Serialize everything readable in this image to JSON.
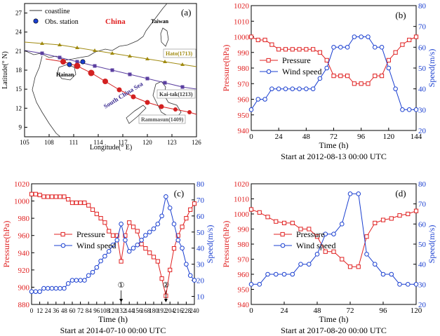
{
  "panel_a": {
    "label": "(a)",
    "legend": {
      "coastline": "coastline",
      "station": "Obs. station"
    },
    "place_labels": {
      "china": "China",
      "taiwan": "Taiwan",
      "hainan": "Hainan",
      "sea": "South China Sea"
    },
    "typhoon_labels": {
      "hato": "Hato(1713)",
      "kaitak": "Kai-tak(1213)",
      "rammasun": "Rammasun(1409)"
    },
    "xlabel": "Longitude(° E)",
    "ylabel": "Latitude(° N)",
    "xticks": [
      "105",
      "108",
      "111",
      "114",
      "117",
      "120",
      "123",
      "126"
    ],
    "yticks": [
      "9",
      "12",
      "15",
      "18",
      "21",
      "24",
      "27"
    ],
    "colors": {
      "hato": "#a08a10",
      "kaitak": "#c0392b",
      "rammasun": "#d32020",
      "track_purple": "#5b3fa0",
      "china": "#e02020"
    }
  },
  "chart_data": [
    {
      "type": "line",
      "panel": "(b)",
      "caption": "Start at 2012-08-13 00:00 UTC",
      "xlabel": "Time (h)",
      "ylabel_left": "Pressure(hPa)",
      "ylabel_right": "Speed(m/s)",
      "xlim": [
        0,
        144
      ],
      "ylim_left": [
        940,
        1020
      ],
      "ylim_right": [
        20,
        80
      ],
      "xticks": [
        "0",
        "24",
        "48",
        "72",
        "96",
        "120",
        "144"
      ],
      "yticks_left": [
        "940",
        "950",
        "960",
        "970",
        "980",
        "990",
        "1000",
        "1010",
        "1020"
      ],
      "yticks_right": [
        "20",
        "30",
        "40",
        "50",
        "60",
        "70",
        "80"
      ],
      "legend": [
        "Pressure",
        "Wind speed"
      ],
      "series": [
        {
          "name": "Pressure",
          "axis": "left",
          "color": "#e02020",
          "marker": "square",
          "x": [
            0,
            6,
            12,
            18,
            24,
            30,
            36,
            42,
            48,
            54,
            60,
            66,
            72,
            78,
            84,
            90,
            96,
            102,
            108,
            114,
            120,
            126,
            132,
            138,
            144
          ],
          "y": [
            1000,
            998,
            998,
            995,
            992,
            992,
            992,
            992,
            992,
            992,
            990,
            985,
            975,
            975,
            975,
            970,
            970,
            970,
            975,
            975,
            985,
            990,
            995,
            998,
            1000
          ]
        },
        {
          "name": "Wind speed",
          "axis": "right",
          "color": "#1a3fd0",
          "marker": "circle",
          "x": [
            0,
            6,
            12,
            18,
            24,
            30,
            36,
            42,
            48,
            54,
            60,
            66,
            72,
            78,
            84,
            90,
            96,
            102,
            108,
            114,
            120,
            126,
            132,
            138,
            144
          ],
          "y": [
            30,
            35,
            35,
            40,
            40,
            40,
            40,
            40,
            40,
            40,
            45,
            50,
            60,
            60,
            60,
            65,
            65,
            65,
            60,
            60,
            50,
            40,
            30,
            30,
            30
          ]
        }
      ]
    },
    {
      "type": "line",
      "panel": "(c)",
      "caption": "Start at 2014-07-10 00:00 UTC",
      "xlabel": "Time (h)",
      "ylabel_left": "Pressure(hPa)",
      "ylabel_right": "Speed(m/s)",
      "xlim": [
        0,
        240
      ],
      "ylim_left": [
        880,
        1020
      ],
      "ylim_right": [
        5,
        80
      ],
      "xticks": [
        "0",
        "12",
        "24",
        "36",
        "48",
        "60",
        "72",
        "84",
        "96",
        "108",
        "120",
        "132",
        "144",
        "156",
        "168",
        "180",
        "192",
        "204",
        "216",
        "228",
        "240"
      ],
      "yticks_left": [
        "880",
        "900",
        "920",
        "940",
        "960",
        "980",
        "1000",
        "1020"
      ],
      "yticks_right": [
        "10",
        "20",
        "30",
        "40",
        "50",
        "60",
        "70",
        "80"
      ],
      "legend": [
        "Pressure",
        "Wind speed"
      ],
      "annotations": [
        {
          "text": "①",
          "x": 132
        },
        {
          "text": "②",
          "x": 198
        }
      ],
      "series": [
        {
          "name": "Pressure",
          "axis": "left",
          "color": "#e02020",
          "marker": "square",
          "x": [
            0,
            6,
            12,
            18,
            24,
            30,
            36,
            42,
            48,
            54,
            60,
            66,
            72,
            78,
            84,
            90,
            96,
            102,
            108,
            114,
            120,
            126,
            132,
            138,
            144,
            150,
            156,
            162,
            168,
            174,
            180,
            186,
            192,
            198,
            204,
            210,
            216,
            222,
            228,
            234,
            240
          ],
          "y": [
            1008,
            1008,
            1007,
            1005,
            1005,
            1005,
            1005,
            1005,
            1005,
            1002,
            998,
            998,
            998,
            998,
            995,
            990,
            985,
            980,
            975,
            965,
            960,
            960,
            930,
            960,
            975,
            970,
            965,
            950,
            945,
            940,
            935,
            930,
            910,
            890,
            920,
            945,
            960,
            970,
            980,
            990,
            997
          ]
        },
        {
          "name": "Wind speed",
          "axis": "right",
          "color": "#1a3fd0",
          "marker": "circle",
          "x": [
            0,
            6,
            12,
            18,
            24,
            30,
            36,
            42,
            48,
            54,
            60,
            66,
            72,
            78,
            84,
            90,
            96,
            102,
            108,
            114,
            120,
            126,
            132,
            138,
            144,
            150,
            156,
            162,
            168,
            174,
            180,
            186,
            192,
            198,
            204,
            210,
            216,
            222,
            228,
            234,
            240
          ],
          "y": [
            13,
            13,
            13,
            15,
            15,
            15,
            15,
            15,
            15,
            18,
            20,
            20,
            20,
            20,
            23,
            25,
            28,
            32,
            35,
            38,
            42,
            45,
            55,
            45,
            38,
            40,
            42,
            45,
            48,
            50,
            52,
            55,
            60,
            72,
            65,
            55,
            45,
            40,
            30,
            23,
            20
          ]
        }
      ]
    },
    {
      "type": "line",
      "panel": "(d)",
      "caption": "Start at 2017-08-20 00:00 UTC",
      "xlabel": "Time (h)",
      "ylabel_left": "Pressure(hPa)",
      "ylabel_right": "Speed(m/s)",
      "xlim": [
        0,
        120
      ],
      "ylim_left": [
        940,
        1020
      ],
      "ylim_right": [
        20,
        80
      ],
      "xticks": [
        "0",
        "24",
        "48",
        "72",
        "96",
        "120"
      ],
      "yticks_left": [
        "940",
        "950",
        "960",
        "970",
        "980",
        "990",
        "1000",
        "1010",
        "1020"
      ],
      "yticks_right": [
        "20",
        "30",
        "40",
        "50",
        "60",
        "70",
        "80"
      ],
      "legend": [
        "Pressure",
        "Wind speed"
      ],
      "series": [
        {
          "name": "Pressure",
          "axis": "left",
          "color": "#e02020",
          "marker": "square",
          "x": [
            0,
            6,
            12,
            18,
            24,
            30,
            36,
            42,
            48,
            54,
            60,
            66,
            72,
            78,
            84,
            90,
            96,
            102,
            108,
            114,
            120
          ],
          "y": [
            1003,
            1001,
            998,
            995,
            994,
            994,
            990,
            990,
            985,
            975,
            975,
            970,
            965,
            965,
            985,
            994,
            996,
            997,
            999,
            1000,
            1002
          ]
        },
        {
          "name": "Wind speed",
          "axis": "right",
          "color": "#1a3fd0",
          "marker": "circle",
          "x": [
            0,
            6,
            12,
            18,
            24,
            30,
            36,
            42,
            48,
            54,
            60,
            66,
            72,
            78,
            84,
            90,
            96,
            102,
            108,
            114,
            120
          ],
          "y": [
            30,
            30,
            35,
            35,
            35,
            35,
            40,
            40,
            45,
            55,
            55,
            60,
            75,
            75,
            45,
            40,
            35,
            35,
            30,
            30,
            30
          ]
        }
      ]
    }
  ]
}
